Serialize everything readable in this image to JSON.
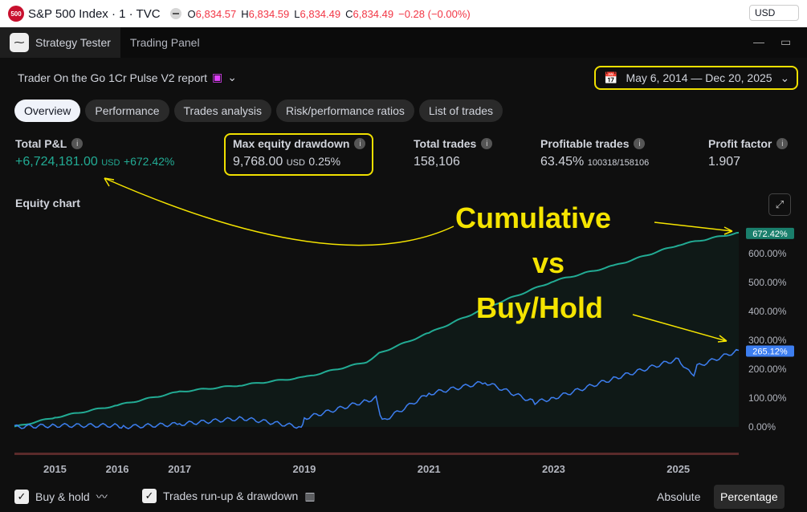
{
  "symbol": {
    "logo": "500",
    "name": "S&P 500 Index · 1 · TVC",
    "o_label": "O",
    "o": "6,834.57",
    "h_label": "H",
    "h": "6,834.59",
    "l_label": "L",
    "l": "6,834.49",
    "c_label": "C",
    "c": "6,834.49",
    "change": "−0.28 (−0.00%)",
    "currency": "USD"
  },
  "tabs": [
    "Strategy Tester",
    "Trading Panel"
  ],
  "report": {
    "title": "Trader On the Go 1Cr Pulse V2 report",
    "date_range": "May 6, 2014 — Dec 20, 2025"
  },
  "subtabs": [
    "Overview",
    "Performance",
    "Trades analysis",
    "Risk/performance ratios",
    "List of trades"
  ],
  "metrics": {
    "pnl": {
      "label": "Total P&L",
      "value": "+6,724,181.00",
      "unit": "USD",
      "pct": "+672.42%"
    },
    "dd": {
      "label": "Max equity drawdown",
      "value": "9,768.00",
      "unit": "USD",
      "pct": "0.25%"
    },
    "trades": {
      "label": "Total trades",
      "value": "158,106"
    },
    "profitable": {
      "label": "Profitable trades",
      "value": "63.45%",
      "ratio": "100318/158106"
    },
    "pf": {
      "label": "Profit factor",
      "value": "1.907"
    }
  },
  "equity_label": "Equity chart",
  "annotations": {
    "line1": "Cumulative",
    "line2": "vs",
    "line3": "Buy/Hold"
  },
  "chart_data": {
    "type": "line",
    "yticks": [
      "0.00%",
      "100.00%",
      "200.00%",
      "300.00%",
      "400.00%",
      "500.00%",
      "600.00%"
    ],
    "xticks": [
      "2015",
      "2016",
      "2017",
      "2019",
      "2021",
      "2023",
      "2025"
    ],
    "xtick_years": [
      2015,
      2016,
      2017,
      2019,
      2021,
      2023,
      2025
    ],
    "ylim": [
      0,
      672
    ],
    "xlim": [
      2014.35,
      2025.97
    ],
    "series": [
      {
        "name": "Strategy equity",
        "color": "#22ab94",
        "last_label": "672.42%",
        "x": [
          2014.35,
          2015,
          2016,
          2017,
          2018,
          2019,
          2020,
          2020.2,
          2021,
          2022,
          2023,
          2024,
          2025,
          2025.97
        ],
        "y": [
          0,
          33,
          75,
          122,
          145,
          172,
          225,
          255,
          325,
          420,
          505,
          560,
          630,
          672.42
        ]
      },
      {
        "name": "Buy & hold",
        "color": "#3d7ef0",
        "last_label": "265.12%",
        "x": [
          2014.35,
          2015,
          2016,
          2016.1,
          2017,
          2018,
          2018.95,
          2019,
          2020,
          2020.15,
          2020.25,
          2021,
          2021.9,
          2022.7,
          2023,
          2024,
          2025,
          2025.25,
          2025.3,
          2025.97
        ],
        "y": [
          0,
          5,
          5,
          0,
          10,
          30,
          0,
          30,
          90,
          100,
          20,
          115,
          155,
          85,
          100,
          170,
          235,
          170,
          210,
          265.12
        ]
      }
    ]
  },
  "bottom": {
    "buyhold": "Buy & hold",
    "runup": "Trades run-up & drawdown",
    "absolute": "Absolute",
    "percentage": "Percentage"
  }
}
